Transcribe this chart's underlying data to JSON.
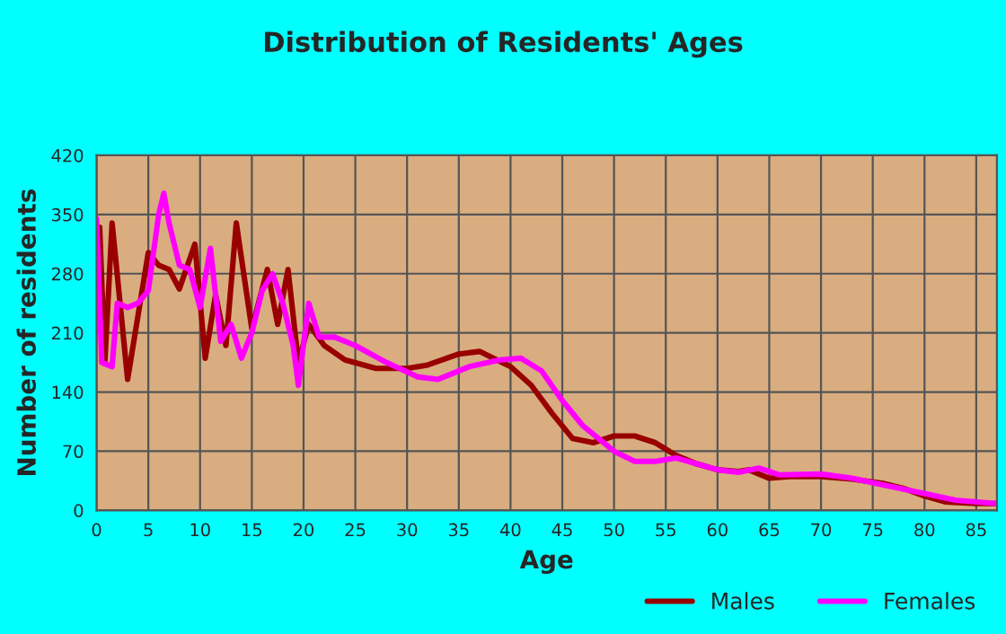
{
  "chart_data": {
    "type": "line",
    "title": "Distribution of Residents' Ages",
    "xlabel": "Age",
    "ylabel": "Number of residents",
    "xlim": [
      0,
      87
    ],
    "xticks": [
      0,
      5,
      10,
      15,
      20,
      25,
      30,
      35,
      40,
      45,
      50,
      55,
      60,
      65,
      70,
      75,
      80,
      85
    ],
    "ylim": [
      0,
      420
    ],
    "yticks": [
      0,
      70,
      140,
      210,
      280,
      350,
      420
    ],
    "grid": true,
    "legend": "bottom",
    "series": [
      {
        "name": "Males",
        "color": "#990000",
        "x": [
          0,
          0.3,
          0.8,
          1.5,
          3,
          4,
          5,
          6,
          7,
          8,
          9.5,
          10.5,
          11.5,
          12.5,
          13.5,
          15,
          16.5,
          17.5,
          18.5,
          19.5,
          20.5,
          22,
          24,
          27,
          30,
          32,
          35,
          37,
          40,
          42,
          44,
          46,
          48,
          50,
          52,
          54,
          56,
          58,
          60,
          62,
          63,
          65,
          67,
          70,
          73,
          76,
          78,
          80,
          82,
          85,
          87
        ],
        "values": [
          250,
          335,
          175,
          340,
          155,
          230,
          305,
          290,
          285,
          262,
          315,
          180,
          255,
          195,
          340,
          215,
          285,
          220,
          285,
          175,
          220,
          195,
          178,
          168,
          168,
          172,
          185,
          188,
          170,
          148,
          115,
          85,
          80,
          88,
          88,
          80,
          65,
          55,
          48,
          46,
          48,
          38,
          40,
          40,
          37,
          32,
          26,
          17,
          10,
          8,
          8
        ]
      },
      {
        "name": "Females",
        "color": "#ff00ff",
        "x": [
          0,
          0.5,
          1.5,
          2,
          3,
          4,
          5,
          6,
          6.5,
          7,
          8,
          9,
          10,
          11,
          12,
          13,
          14,
          15,
          16,
          17,
          18,
          19,
          19.5,
          20.5,
          21.5,
          23,
          25,
          28,
          31,
          33,
          36,
          39,
          41,
          43,
          45,
          47,
          50,
          52,
          54,
          56,
          58,
          60,
          62,
          64,
          66,
          70,
          73,
          76,
          80,
          83,
          87
        ],
        "values": [
          345,
          175,
          170,
          245,
          240,
          245,
          260,
          350,
          375,
          340,
          290,
          285,
          240,
          310,
          200,
          220,
          180,
          210,
          260,
          280,
          245,
          195,
          148,
          245,
          205,
          205,
          195,
          175,
          158,
          155,
          170,
          178,
          180,
          165,
          130,
          100,
          70,
          58,
          58,
          62,
          55,
          48,
          45,
          50,
          42,
          43,
          38,
          30,
          20,
          12,
          8
        ]
      }
    ]
  }
}
